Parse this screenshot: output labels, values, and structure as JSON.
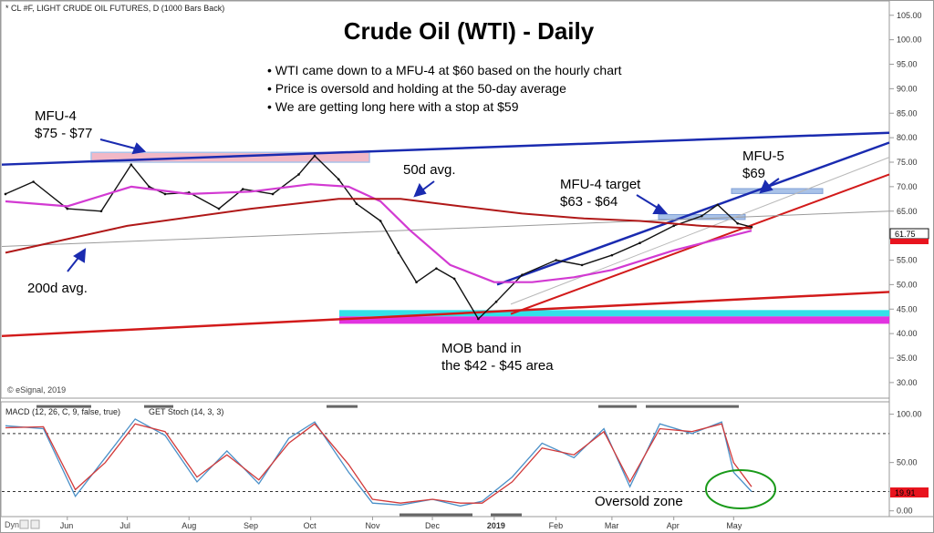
{
  "header": {
    "symbol_line": "* CL #F, LIGHT CRUDE OIL FUTURES, D (1000 Bars Back)",
    "title": "Crude Oil (WTI) - Daily",
    "watermark": "© eSignal, 2019",
    "dyn_label": "Dyn"
  },
  "notes": [
    "• WTI came down to a MFU-4 at $60 based on the hourly chart",
    "• Price is oversold and holding at the 50-day average",
    "• We are getting long here with a stop at $59"
  ],
  "annotations": {
    "mfu4_line1": "MFU-4",
    "mfu4_line2": "$75 - $77",
    "avg50": "50d avg.",
    "avg200": "200d avg.",
    "target_line1": "MFU-4 target",
    "target_line2": "$63 - $64",
    "mfu5_line1": "MFU-5",
    "mfu5_line2": "$69",
    "mob_line1": "MOB band in",
    "mob_line2": "the $42 - $45 area",
    "oversold": "Oversold zone"
  },
  "indicator_labels": {
    "macd": "MACD (12, 26, C, 9, false, true)",
    "stoch": "GET Stoch (14, 3, 3)"
  },
  "colors": {
    "price": "#111111",
    "ma50": "#d23ad2",
    "ma200": "#b01818",
    "trend_blue": "#1a2bb0",
    "trend_red": "#d21a1a",
    "mfu_pink": "#f2b8c6",
    "mfu_blue": "#a9c2e8",
    "mob_cyan": "#33e0e8",
    "mob_magenta": "#e233e0",
    "stoch_k": "#4a90c8",
    "stoch_d": "#d23a3a",
    "oversold_circle": "#1a9a1a",
    "price_tag": "#e8141e",
    "stoch_tag": "#e8141e"
  },
  "chart_data": {
    "type": "line",
    "title": "Crude Oil (WTI) - Daily",
    "x_ticks": [
      "Jun",
      "Jul",
      "Aug",
      "Sep",
      "Oct",
      "Nov",
      "Dec",
      "2019",
      "Feb",
      "Mar",
      "Apr",
      "May"
    ],
    "x_start": "2018-05",
    "x_end": "2019-05",
    "ylim": [
      27,
      107
    ],
    "y_ticks": [
      "105.00",
      "100.00",
      "95.00",
      "90.00",
      "85.00",
      "80.00",
      "75.00",
      "70.00",
      "65.00",
      "60.00",
      "55.00",
      "50.00",
      "45.00",
      "40.00",
      "35.00",
      "30.00"
    ],
    "last_price": "61.75",
    "series": [
      {
        "name": "",
        "dates": [
          "2018-05-01",
          "2018-05-15",
          "2018-06-01",
          "2018-06-18",
          "2018-07-03",
          "2018-07-12",
          "2018-07-20",
          "2018-08-01",
          "2018-08-16",
          "2018-08-28",
          "2018-09-12",
          "2018-09-25",
          "2018-10-03",
          "2018-10-15",
          "2018-10-24",
          "2018-11-05",
          "2018-11-14",
          "2018-11-23",
          "2018-12-03",
          "2018-12-12",
          "2018-12-24",
          "2019-01-02",
          "2019-01-15",
          "2019-02-01",
          "2019-02-14",
          "2019-03-01",
          "2019-03-15",
          "2019-04-01",
          "2019-04-15",
          "2019-04-23",
          "2019-05-03",
          "2019-05-10"
        ],
        "values": [
          68.5,
          71,
          65.5,
          65,
          74.5,
          70,
          68.5,
          68.8,
          65.5,
          69.5,
          68.5,
          72.5,
          76.3,
          71.5,
          66.5,
          63,
          56.5,
          50.5,
          53.3,
          51.2,
          43,
          46.5,
          52,
          55,
          54,
          56,
          58.5,
          62,
          64,
          66.3,
          62.5,
          61.75
        ]
      },
      {
        "name": "",
        "dates": [
          "2018-05-01",
          "2018-06-01",
          "2018-07-03",
          "2018-08-01",
          "2018-09-01",
          "2018-10-01",
          "2018-10-20",
          "2018-11-05",
          "2018-11-20",
          "2018-12-10",
          "2019-01-01",
          "2019-01-20",
          "2019-02-10",
          "2019-03-01",
          "2019-04-01",
          "2019-05-10"
        ],
        "values": [
          67,
          66,
          70,
          68.5,
          69,
          70.5,
          70,
          67,
          61,
          54,
          50.5,
          50.5,
          51.5,
          53,
          57,
          61
        ]
      },
      {
        "name": "",
        "dates": [
          "2018-05-01",
          "2018-07-01",
          "2018-09-01",
          "2018-10-15",
          "2018-11-15",
          "2018-12-15",
          "2019-01-15",
          "2019-02-15",
          "2019-03-15",
          "2019-04-15",
          "2019-05-10"
        ],
        "values": [
          56.5,
          62,
          65.5,
          67.5,
          67.5,
          66,
          64.5,
          63.5,
          63,
          62,
          61.5
        ]
      }
    ],
    "lower_panel": {
      "type": "line",
      "ylim": [
        -5,
        110
      ],
      "y_ticks": [
        "100.00",
        "50.00",
        "0.00"
      ],
      "reference_lines": [
        80,
        20
      ],
      "last_value": "19.91",
      "series": [
        {
          "name": "",
          "dates": [
            "2018-05-01",
            "2018-05-20",
            "2018-06-05",
            "2018-06-20",
            "2018-07-05",
            "2018-07-20",
            "2018-08-05",
            "2018-08-20",
            "2018-09-05",
            "2018-09-20",
            "2018-10-03",
            "2018-10-20",
            "2018-11-01",
            "2018-11-15",
            "2018-12-01",
            "2018-12-15",
            "2018-12-26",
            "2019-01-10",
            "2019-01-25",
            "2019-02-10",
            "2019-02-25",
            "2019-03-10",
            "2019-03-25",
            "2019-04-10",
            "2019-04-25",
            "2019-05-01",
            "2019-05-10"
          ],
          "values": [
            88,
            85,
            15,
            55,
            95,
            78,
            30,
            62,
            28,
            75,
            92,
            40,
            8,
            6,
            12,
            5,
            10,
            35,
            70,
            55,
            85,
            25,
            90,
            80,
            92,
            40,
            20
          ]
        },
        {
          "name": "",
          "dates": [
            "2018-05-01",
            "2018-05-20",
            "2018-06-05",
            "2018-06-20",
            "2018-07-05",
            "2018-07-20",
            "2018-08-05",
            "2018-08-20",
            "2018-09-05",
            "2018-09-20",
            "2018-10-03",
            "2018-10-20",
            "2018-11-01",
            "2018-11-15",
            "2018-12-01",
            "2018-12-15",
            "2018-12-26",
            "2019-01-10",
            "2019-01-25",
            "2019-02-10",
            "2019-02-25",
            "2019-03-10",
            "2019-03-25",
            "2019-04-10",
            "2019-04-25",
            "2019-05-01",
            "2019-05-10"
          ],
          "values": [
            86,
            87,
            22,
            50,
            90,
            82,
            35,
            58,
            32,
            70,
            90,
            48,
            12,
            8,
            12,
            8,
            8,
            30,
            65,
            58,
            82,
            30,
            85,
            82,
            90,
            50,
            25
          ]
        }
      ]
    }
  }
}
